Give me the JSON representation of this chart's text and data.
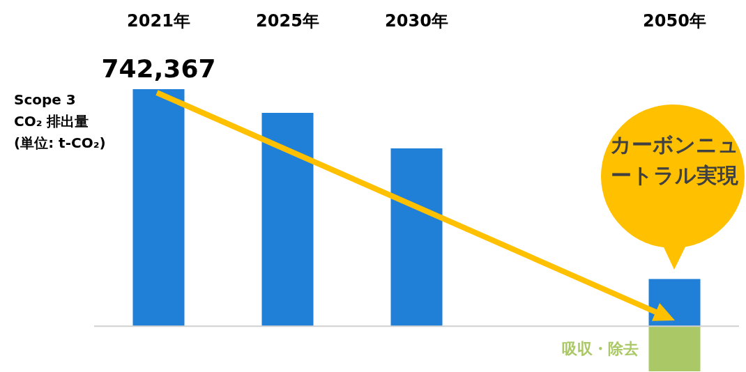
{
  "chart_data": {
    "type": "bar",
    "categories": [
      "2021年",
      "2025年",
      "2030年",
      null,
      "2050年"
    ],
    "ylabel": "Scope 3\nCO₂ 排出量\n(単位: t-CO₂)",
    "annotations": [
      "カーボンニュートラル実現"
    ],
    "series": [
      {
        "color": "#207fd6",
        "values": [
          742367,
          668000,
          557000,
          null,
          148000
        ],
        "value_labels": [
          "742,367",
          null,
          null,
          null,
          null
        ]
      },
      {
        "name": "吸収・除去",
        "color": "#abc866",
        "values": [
          null,
          null,
          null,
          null,
          -141000
        ]
      }
    ]
  }
}
